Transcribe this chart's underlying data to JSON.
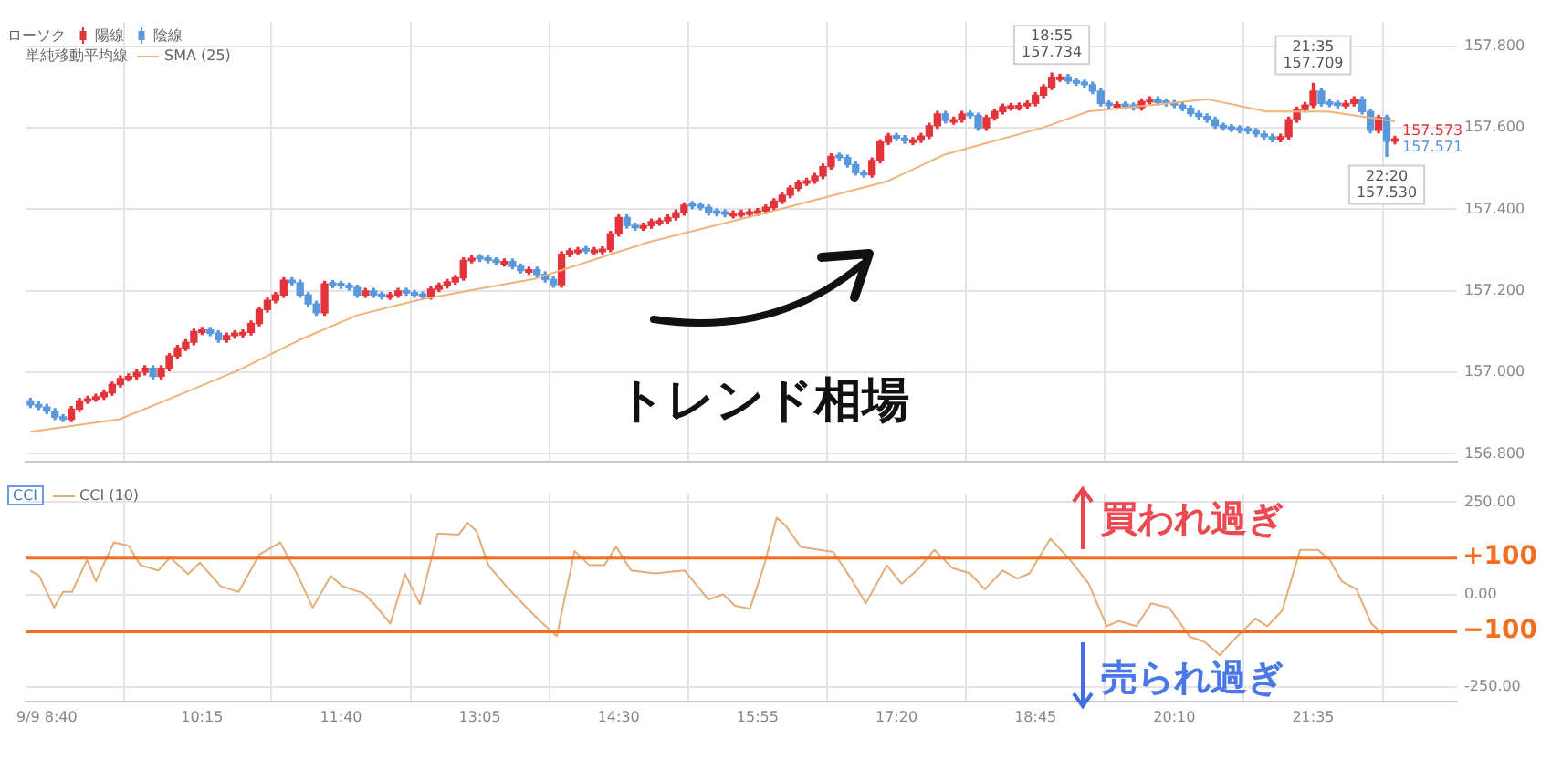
{
  "chart_data": [
    {
      "type": "candlestick",
      "legend": "top left",
      "legend_title": "ローソク",
      "tick_labels": "y",
      "grid": true,
      "xlim": [
        8.45,
        23.05
      ],
      "xticks": [
        {
          "value": 8.6667,
          "label": null
        },
        {
          "value": 10.25,
          "label": null
        },
        {
          "value": 11.6667,
          "label": null
        },
        {
          "value": 13.0833,
          "label": null
        },
        {
          "value": 14.5,
          "label": null
        },
        {
          "value": 15.9167,
          "label": null
        },
        {
          "value": 17.3333,
          "label": null
        },
        {
          "value": 18.75,
          "label": null
        },
        {
          "value": 20.1667,
          "label": null
        },
        {
          "value": 21.5833,
          "label": null
        }
      ],
      "ylim": [
        156.78,
        157.86
      ],
      "yticks": [
        {
          "value": 156.8,
          "label": "156.800"
        },
        {
          "value": 157,
          "label": "157.000"
        },
        {
          "value": 157.2,
          "label": "157.200"
        },
        {
          "value": 157.4,
          "label": "157.400"
        },
        {
          "value": 157.6,
          "label": "157.600"
        },
        {
          "value": 157.8,
          "label": "157.800"
        }
      ],
      "series": [
        {
          "type": "candlestick",
          "name": "陽線",
          "color": "#e3343c",
          "x": [
            8.9167,
            9,
            9.0833,
            9.1667,
            9.25,
            9.3333,
            9.4167,
            9.5,
            9.5833,
            9.6667,
            9.8333,
            9.9167,
            10,
            10.0833,
            10.1667,
            10.25,
            10.5,
            10.5833,
            10.6667,
            10.75,
            10.8333,
            10.9167,
            11,
            11.0833,
            11.5,
            11.9167,
            12.1667,
            12.25,
            12.5833,
            12.6667,
            12.75,
            12.8333,
            12.9167,
            13,
            13.3333,
            13.5833,
            13.9167,
            14,
            14.0833,
            14.25,
            14.3333,
            14.4167,
            14.5,
            14.75,
            14.8333,
            14.9167,
            15,
            15.0833,
            15.1667,
            15.6667,
            15.75,
            15.8333,
            15.9167,
            16,
            16.0833,
            16.1667,
            16.25,
            16.3333,
            16.4167,
            16.5,
            16.5833,
            16.6667,
            17.0833,
            17.1667,
            17.25,
            17.5,
            17.5833,
            17.6667,
            17.75,
            17.9167,
            18,
            18.25,
            18.3333,
            18.4167,
            18.5,
            18.5833,
            18.6667,
            18.75,
            18.8333,
            18.9167,
            19,
            19.5833,
            19.8333,
            19.9167,
            21.25,
            21.3333,
            21.4167,
            21.5,
            21.5833,
            21.9167,
            22,
            22.25,
            22.4167
          ],
          "ohlc": [
            [
              156.885,
              156.916,
              156.879,
              156.91
            ],
            [
              156.91,
              156.936,
              156.904,
              156.93
            ],
            [
              156.929,
              156.941,
              156.924,
              156.935
            ],
            [
              156.934,
              156.946,
              156.929,
              156.94
            ],
            [
              156.94,
              156.956,
              156.934,
              156.95
            ],
            [
              156.95,
              156.976,
              156.944,
              156.97
            ],
            [
              156.97,
              156.991,
              156.964,
              156.985
            ],
            [
              156.984,
              156.996,
              156.979,
              156.99
            ],
            [
              156.99,
              157.006,
              156.984,
              157.0
            ],
            [
              157.0,
              157.016,
              156.994,
              157.01
            ],
            [
              156.99,
              157.016,
              156.984,
              157.01
            ],
            [
              157.01,
              157.046,
              157.004,
              157.04
            ],
            [
              157.04,
              157.066,
              157.034,
              157.06
            ],
            [
              157.06,
              157.08,
              157.054,
              157.074
            ],
            [
              157.074,
              157.106,
              157.068,
              157.1
            ],
            [
              157.098,
              157.11,
              157.093,
              157.104
            ],
            [
              157.08,
              157.096,
              157.074,
              157.09
            ],
            [
              157.09,
              157.102,
              157.084,
              157.096
            ],
            [
              157.092,
              157.104,
              157.087,
              157.098
            ],
            [
              157.098,
              157.126,
              157.092,
              157.12
            ],
            [
              157.12,
              157.16,
              157.114,
              157.154
            ],
            [
              157.154,
              157.183,
              157.148,
              157.177
            ],
            [
              157.177,
              157.196,
              157.171,
              157.19
            ],
            [
              157.19,
              157.232,
              157.184,
              157.226
            ],
            [
              157.146,
              157.223,
              157.14,
              157.217
            ],
            [
              157.19,
              157.206,
              157.184,
              157.2
            ],
            [
              157.184,
              157.196,
              157.179,
              157.19
            ],
            [
              157.19,
              157.206,
              157.184,
              157.2
            ],
            [
              157.186,
              157.21,
              157.18,
              157.204
            ],
            [
              157.204,
              157.219,
              157.198,
              157.213
            ],
            [
              157.213,
              157.228,
              157.207,
              157.222
            ],
            [
              157.222,
              157.238,
              157.216,
              157.232
            ],
            [
              157.232,
              157.281,
              157.226,
              157.275
            ],
            [
              157.274,
              157.286,
              157.269,
              157.28
            ],
            [
              157.266,
              157.278,
              157.261,
              157.272
            ],
            [
              157.246,
              157.258,
              157.241,
              157.252
            ],
            [
              157.215,
              157.296,
              157.209,
              157.29
            ],
            [
              157.29,
              157.304,
              157.284,
              157.298
            ],
            [
              157.294,
              157.306,
              157.289,
              157.3
            ],
            [
              157.294,
              157.306,
              157.289,
              157.3
            ],
            [
              157.296,
              157.308,
              157.291,
              157.302
            ],
            [
              157.302,
              157.346,
              157.296,
              157.34
            ],
            [
              157.34,
              157.386,
              157.334,
              157.38
            ],
            [
              157.354,
              157.366,
              157.349,
              157.36
            ],
            [
              157.36,
              157.376,
              157.354,
              157.37
            ],
            [
              157.366,
              157.378,
              157.361,
              157.372
            ],
            [
              157.372,
              157.386,
              157.366,
              157.38
            ],
            [
              157.38,
              157.398,
              157.374,
              157.392
            ],
            [
              157.392,
              157.416,
              157.386,
              157.41
            ],
            [
              157.384,
              157.396,
              157.379,
              157.39
            ],
            [
              157.386,
              157.398,
              157.381,
              157.392
            ],
            [
              157.388,
              157.4,
              157.383,
              157.394
            ],
            [
              157.39,
              157.402,
              157.385,
              157.396
            ],
            [
              157.396,
              157.411,
              157.39,
              157.405
            ],
            [
              157.405,
              157.426,
              157.399,
              157.42
            ],
            [
              157.42,
              157.441,
              157.414,
              157.435
            ],
            [
              157.435,
              157.458,
              157.429,
              157.452
            ],
            [
              157.452,
              157.471,
              157.446,
              157.465
            ],
            [
              157.464,
              157.476,
              157.459,
              157.47
            ],
            [
              157.47,
              157.488,
              157.464,
              157.482
            ],
            [
              157.482,
              157.511,
              157.476,
              157.505
            ],
            [
              157.505,
              157.536,
              157.499,
              157.53
            ],
            [
              157.485,
              157.526,
              157.479,
              157.52
            ],
            [
              157.52,
              157.571,
              157.514,
              157.565
            ],
            [
              157.565,
              157.586,
              157.559,
              157.58
            ],
            [
              157.564,
              157.576,
              157.559,
              157.57
            ],
            [
              157.57,
              157.586,
              157.564,
              157.58
            ],
            [
              157.58,
              157.611,
              157.574,
              157.605
            ],
            [
              157.605,
              157.64,
              157.599,
              157.634
            ],
            [
              157.614,
              157.626,
              157.609,
              157.62
            ],
            [
              157.62,
              157.64,
              157.614,
              157.634
            ],
            [
              157.6,
              157.631,
              157.594,
              157.625
            ],
            [
              157.625,
              157.646,
              157.619,
              157.64
            ],
            [
              157.64,
              157.658,
              157.634,
              157.652
            ],
            [
              157.648,
              157.66,
              157.643,
              157.654
            ],
            [
              157.649,
              157.661,
              157.644,
              157.655
            ],
            [
              157.654,
              157.666,
              157.649,
              157.66
            ],
            [
              157.66,
              157.686,
              157.654,
              157.68
            ],
            [
              157.68,
              157.706,
              157.674,
              157.7
            ],
            [
              157.7,
              157.734,
              157.694,
              157.724
            ],
            [
              157.719,
              157.731,
              157.714,
              157.725
            ],
            [
              157.651,
              157.663,
              157.646,
              157.657
            ],
            [
              157.65,
              157.671,
              157.644,
              157.665
            ],
            [
              157.664,
              157.676,
              157.659,
              157.67
            ],
            [
              157.572,
              157.584,
              157.566,
              157.578
            ],
            [
              157.578,
              157.626,
              157.572,
              157.62
            ],
            [
              157.62,
              157.651,
              157.614,
              157.645
            ],
            [
              157.645,
              157.662,
              157.639,
              157.656
            ],
            [
              157.656,
              157.709,
              157.65,
              157.69
            ],
            [
              157.654,
              157.666,
              157.649,
              157.66
            ],
            [
              157.66,
              157.676,
              157.654,
              157.67
            ],
            [
              157.594,
              157.631,
              157.588,
              157.625
            ],
            [
              157.567,
              157.579,
              157.561,
              157.573
            ]
          ]
        },
        {
          "type": "candlestick",
          "name": "陰線",
          "color": "#5a98de",
          "x": [
            8.5,
            8.5833,
            8.6667,
            8.75,
            8.8333,
            9.75,
            10.3333,
            10.4167,
            11.1667,
            11.25,
            11.3333,
            11.4167,
            11.5833,
            11.6667,
            11.75,
            11.8333,
            12,
            12.0833,
            12.3333,
            12.4167,
            12.5,
            13.0833,
            13.1667,
            13.25,
            13.4167,
            13.5,
            13.6667,
            13.75,
            13.8333,
            14.1667,
            14.5833,
            14.6667,
            15.25,
            15.3333,
            15.4167,
            15.5,
            15.5833,
            16.75,
            16.8333,
            16.9167,
            17,
            17.3333,
            17.4167,
            17.8333,
            18.0833,
            18.1667,
            19.0833,
            19.1667,
            19.25,
            19.3333,
            19.4167,
            19.5,
            19.6667,
            19.75,
            20,
            20.0833,
            20.1667,
            20.25,
            20.3333,
            20.4167,
            20.5,
            20.5833,
            20.6667,
            20.75,
            20.8333,
            20.9167,
            21,
            21.0833,
            21.1667,
            21.6667,
            21.75,
            21.8333,
            22.0833,
            22.1667,
            22.3333
          ],
          "ohlc": [
            [
              156.93,
              156.936,
              156.914,
              156.92
            ],
            [
              156.921,
              156.927,
              156.909,
              156.915
            ],
            [
              156.915,
              156.921,
              156.899,
              156.905
            ],
            [
              156.905,
              156.911,
              156.884,
              156.89
            ],
            [
              156.891,
              156.896,
              156.879,
              156.885
            ],
            [
              157.01,
              157.016,
              156.984,
              156.99
            ],
            [
              157.104,
              157.11,
              157.09,
              157.096
            ],
            [
              157.096,
              157.102,
              157.074,
              157.08
            ],
            [
              157.226,
              157.232,
              157.214,
              157.22
            ],
            [
              157.22,
              157.226,
              157.184,
              157.19
            ],
            [
              157.19,
              157.196,
              157.162,
              157.168
            ],
            [
              157.168,
              157.174,
              157.14,
              157.146
            ],
            [
              157.22,
              157.225,
              157.208,
              157.214
            ],
            [
              157.218,
              157.223,
              157.206,
              157.212
            ],
            [
              157.214,
              157.219,
              157.202,
              157.208
            ],
            [
              157.208,
              157.214,
              157.184,
              157.19
            ],
            [
              157.2,
              157.206,
              157.184,
              157.19
            ],
            [
              157.192,
              157.197,
              157.18,
              157.186
            ],
            [
              157.201,
              157.206,
              157.189,
              157.195
            ],
            [
              157.196,
              157.201,
              157.184,
              157.19
            ],
            [
              157.192,
              157.197,
              157.18,
              157.186
            ],
            [
              157.284,
              157.289,
              157.272,
              157.278
            ],
            [
              157.281,
              157.286,
              157.269,
              157.275
            ],
            [
              157.276,
              157.281,
              157.264,
              157.27
            ],
            [
              157.272,
              157.278,
              157.254,
              157.26
            ],
            [
              157.26,
              157.266,
              157.244,
              157.25
            ],
            [
              157.252,
              157.258,
              157.234,
              157.24
            ],
            [
              157.24,
              157.246,
              157.222,
              157.228
            ],
            [
              157.228,
              157.234,
              157.209,
              157.215
            ],
            [
              157.304,
              157.309,
              157.292,
              157.298
            ],
            [
              157.38,
              157.386,
              157.354,
              157.36
            ],
            [
              157.361,
              157.366,
              157.349,
              157.355
            ],
            [
              157.414,
              157.419,
              157.402,
              157.408
            ],
            [
              157.411,
              157.416,
              157.399,
              157.405
            ],
            [
              157.405,
              157.411,
              157.386,
              157.392
            ],
            [
              157.396,
              157.401,
              157.384,
              157.39
            ],
            [
              157.394,
              157.399,
              157.382,
              157.388
            ],
            [
              157.533,
              157.538,
              157.521,
              157.527
            ],
            [
              157.527,
              157.533,
              157.504,
              157.51
            ],
            [
              157.51,
              157.516,
              157.484,
              157.49
            ],
            [
              157.491,
              157.496,
              157.479,
              157.485
            ],
            [
              157.581,
              157.586,
              157.569,
              157.575
            ],
            [
              157.575,
              157.581,
              157.562,
              157.568
            ],
            [
              157.634,
              157.64,
              157.612,
              157.618
            ],
            [
              157.636,
              157.641,
              157.624,
              157.63
            ],
            [
              157.63,
              157.636,
              157.594,
              157.6
            ],
            [
              157.725,
              157.731,
              157.709,
              157.715
            ],
            [
              157.716,
              157.721,
              157.704,
              157.71
            ],
            [
              157.712,
              157.717,
              157.7,
              157.706
            ],
            [
              157.706,
              157.712,
              157.684,
              157.69
            ],
            [
              157.69,
              157.696,
              157.654,
              157.66
            ],
            [
              157.661,
              157.666,
              157.649,
              157.655
            ],
            [
              157.658,
              157.663,
              157.646,
              157.652
            ],
            [
              157.656,
              157.661,
              157.644,
              157.65
            ],
            [
              157.67,
              157.676,
              157.656,
              157.662
            ],
            [
              157.666,
              157.671,
              157.654,
              157.66
            ],
            [
              157.662,
              157.667,
              157.65,
              157.656
            ],
            [
              157.656,
              157.662,
              157.642,
              157.648
            ],
            [
              157.648,
              157.654,
              157.629,
              157.635
            ],
            [
              157.635,
              157.641,
              157.622,
              157.628
            ],
            [
              157.628,
              157.634,
              157.614,
              157.62
            ],
            [
              157.62,
              157.626,
              157.599,
              157.605
            ],
            [
              157.606,
              157.611,
              157.594,
              157.6
            ],
            [
              157.603,
              157.608,
              157.591,
              157.597
            ],
            [
              157.6,
              157.605,
              157.588,
              157.594
            ],
            [
              157.598,
              157.603,
              157.586,
              157.592
            ],
            [
              157.592,
              157.598,
              157.579,
              157.585
            ],
            [
              157.585,
              157.591,
              157.572,
              157.578
            ],
            [
              157.578,
              157.584,
              157.566,
              157.572
            ],
            [
              157.69,
              157.696,
              157.654,
              157.66
            ],
            [
              157.664,
              157.669,
              157.652,
              157.658
            ],
            [
              157.661,
              157.666,
              157.649,
              157.655
            ],
            [
              157.67,
              157.676,
              157.634,
              157.64
            ],
            [
              157.64,
              157.646,
              157.588,
              157.594
            ],
            [
              157.625,
              157.631,
              157.53,
              157.567
            ]
          ]
        },
        {
          "type": "line",
          "name": "SMA (25)",
          "color": "#f2b27a",
          "x": [
            8.5,
            9.41,
            10.01,
            10.63,
            11.23,
            11.83,
            12.45,
            13.05,
            13.65,
            14.81,
            16.01,
            17.23,
            17.83,
            18.82,
            19.29,
            20.51,
            21.11,
            21.73,
            22.42
          ],
          "values": [
            156.854,
            156.885,
            156.944,
            157.006,
            157.078,
            157.14,
            157.177,
            157.204,
            157.23,
            157.32,
            157.392,
            157.468,
            157.535,
            157.6,
            157.64,
            157.67,
            157.64,
            157.64,
            157.616
          ]
        }
      ],
      "annotations": [
        "単純移動平均線",
        "トレンド相場",
        "157.573",
        "157.571",
        {
          "text": "18:55\n157.734",
          "x": 18.9167,
          "y": 157.734
        },
        {
          "text": "21:35\n157.709",
          "x": 21.5833,
          "y": 157.709
        },
        {
          "text": "22:20\n157.530",
          "x": 22.3333,
          "y": 157.53
        }
      ]
    },
    {
      "type": "line",
      "legend": "top left",
      "legend_title": "CCI",
      "grid": true,
      "xlim": [
        8.45,
        23.05
      ],
      "xticks": [
        {
          "value": 8.6667,
          "label": "9/9 8:40"
        },
        {
          "value": 10.25,
          "label": "10:15"
        },
        {
          "value": 11.6667,
          "label": "11:40"
        },
        {
          "value": 13.0833,
          "label": "13:05"
        },
        {
          "value": 14.5,
          "label": "14:30"
        },
        {
          "value": 15.9167,
          "label": "15:55"
        },
        {
          "value": 17.3333,
          "label": "17:20"
        },
        {
          "value": 18.75,
          "label": "18:45"
        },
        {
          "value": 20.1667,
          "label": "20:10"
        },
        {
          "value": 21.5833,
          "label": "21:35"
        }
      ],
      "ylim": [
        -290,
        272
      ],
      "yticks": [
        {
          "value": -250,
          "label": "-250.00"
        },
        {
          "value": 0,
          "label": "0.00"
        },
        {
          "value": 250,
          "label": "250.00"
        }
      ],
      "ref_lines": [
        {
          "axis": "y",
          "value": 100,
          "label": "+100",
          "color": "#f26f22"
        },
        {
          "axis": "y",
          "value": -100,
          "label": "−100",
          "color": "#f26f22"
        }
      ],
      "annotations": [
        "買われ過ぎ",
        "売られ過ぎ"
      ],
      "series": [
        {
          "name": "CCI (10)",
          "color": "#e2ad78",
          "x": [
            8.5,
            8.591,
            8.742,
            8.833,
            8.924,
            9.077,
            9.168,
            9.35,
            9.501,
            9.623,
            9.805,
            9.925,
            10.107,
            10.229,
            10.441,
            10.623,
            10.834,
            11.047,
            11.229,
            11.38,
            11.562,
            11.684,
            11.897,
            12.017,
            12.17,
            12.321,
            12.472,
            12.654,
            12.867,
            12.958,
            13.049,
            13.171,
            13.353,
            13.535,
            13.686,
            13.868,
            14.05,
            14.201,
            14.353,
            14.473,
            14.626,
            14.868,
            15.172,
            15.414,
            15.565,
            15.687,
            15.838,
            15.991,
            16.111,
            16.202,
            16.355,
            16.688,
            16.87,
            17.021,
            17.234,
            17.385,
            17.567,
            17.719,
            17.901,
            18.083,
            18.234,
            18.416,
            18.568,
            18.689,
            18.902,
            19.084,
            19.295,
            19.477,
            19.599,
            19.781,
            19.932,
            20.114,
            20.327,
            20.478,
            20.631,
            20.751,
            20.994,
            21.115,
            21.268,
            21.45,
            21.632,
            21.751,
            21.874,
            22.025,
            22.177,
            22.297
          ],
          "values": [
            65,
            50,
            -36,
            7,
            7,
            94,
            36,
            141,
            132,
            79,
            65,
            100,
            55,
            86,
            22,
            7,
            108,
            141,
            50,
            -36,
            50,
            22,
            3,
            -29,
            -79,
            55,
            -26,
            165,
            162,
            194,
            172,
            79,
            22,
            -29,
            -69,
            -113,
            118,
            79,
            79,
            129,
            65,
            57,
            65,
            -14,
            0,
            -31,
            -39,
            86,
            208,
            187,
            129,
            115,
            43,
            -24,
            79,
            29,
            72,
            121,
            72,
            57,
            14,
            65,
            43,
            57,
            151,
            100,
            29,
            -86,
            -72,
            -86,
            -24,
            -36,
            -115,
            -129,
            -165,
            -129,
            -65,
            -86,
            -43,
            121,
            121,
            94,
            36,
            14,
            -79,
            -108
          ]
        }
      ]
    }
  ]
}
